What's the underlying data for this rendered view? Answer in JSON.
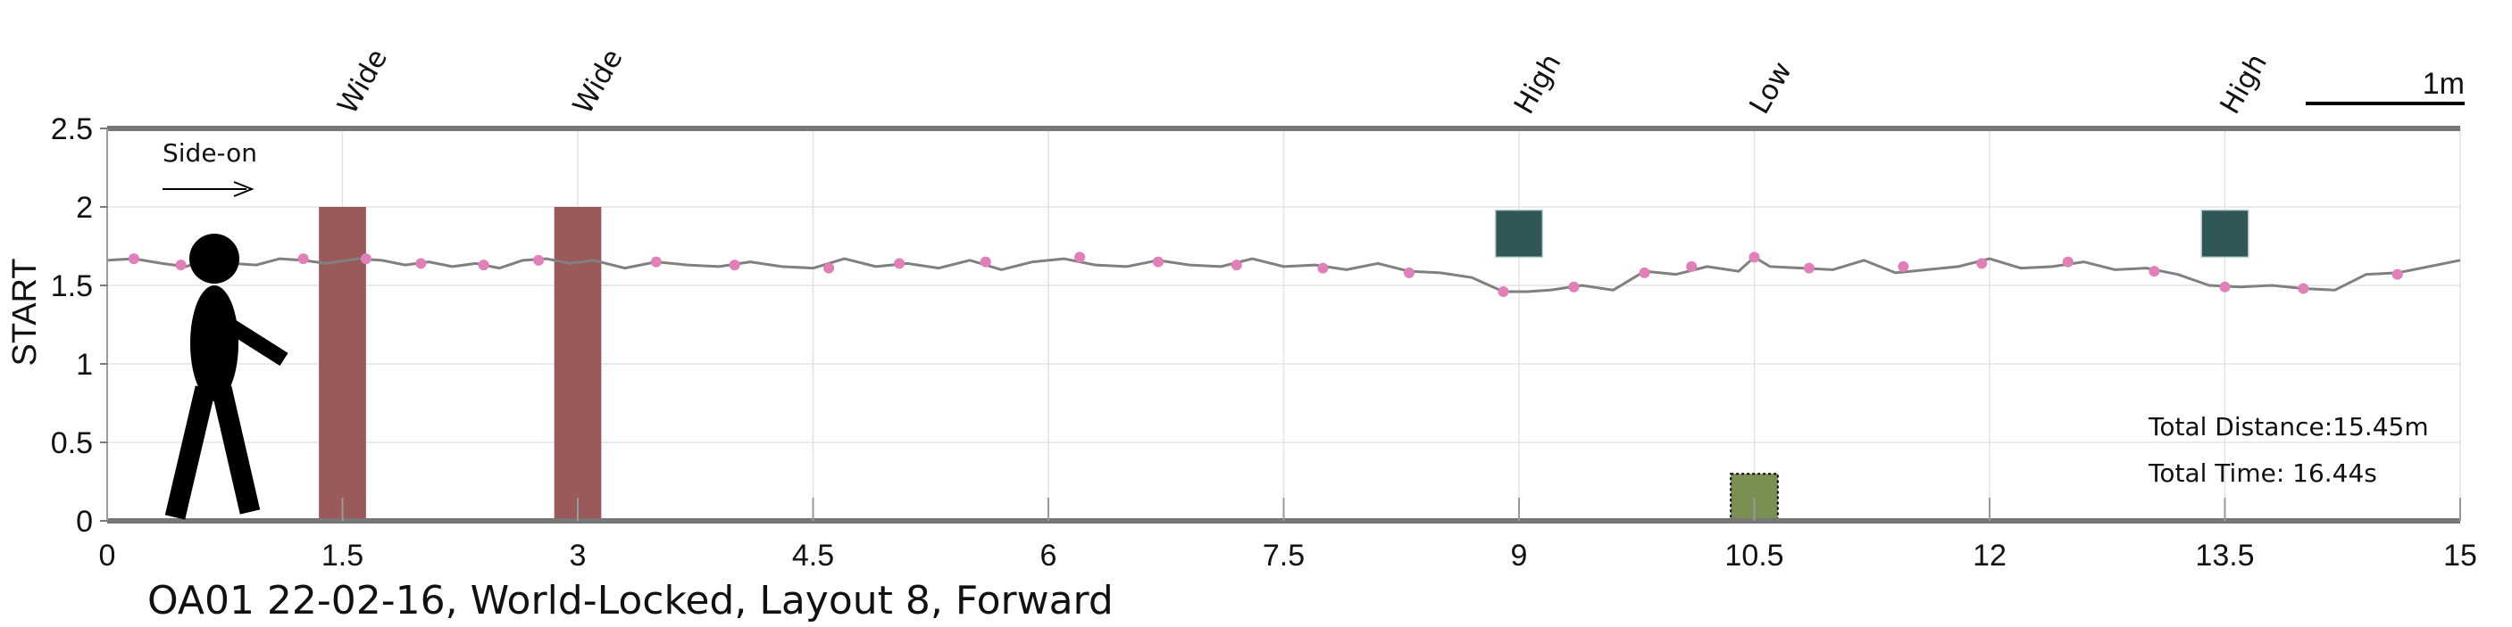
{
  "chart_data": {
    "type": "line",
    "title": "OA01 22-02-16, World-Locked, Layout 8, Forward",
    "xlabel": "",
    "ylabel": "START",
    "xlim": [
      0,
      15
    ],
    "ylim": [
      0,
      2.5
    ],
    "xticks": [
      0,
      1.5,
      3,
      4.5,
      6,
      7.5,
      9,
      10.5,
      12,
      13.5,
      15
    ],
    "xtick_labels": [
      "0",
      "1.5",
      "3",
      "4.5",
      "6",
      "7.5",
      "9",
      "10.5",
      "12",
      "13.5",
      "15"
    ],
    "yticks": [
      0,
      0.5,
      1,
      1.5,
      2,
      2.5
    ],
    "ytick_labels": [
      "0",
      "0.5",
      "1",
      "1.5",
      "2",
      "2.5"
    ],
    "grid": true,
    "scale_bar_label": "1m",
    "scale_bar_length": 1,
    "direction_label": "Side-on",
    "walker_icon": "walking-person-icon",
    "colors": {
      "path": "#808080",
      "marker": "#e07fb8",
      "wide_obstacle": "#9b5a5a",
      "high_obstacle": "#2f5757",
      "low_obstacle": "#7a8f52",
      "axis": "#777777"
    },
    "series": [
      {
        "x": [
          0.0,
          0.17,
          0.35,
          0.5,
          0.65,
          0.8,
          0.95,
          1.1,
          1.25,
          1.4,
          1.6,
          1.75,
          1.9,
          2.05,
          2.2,
          2.35,
          2.5,
          2.65,
          2.8,
          2.95,
          3.1,
          3.3,
          3.5,
          3.7,
          3.9,
          4.1,
          4.3,
          4.5,
          4.7,
          4.9,
          5.1,
          5.3,
          5.5,
          5.7,
          5.9,
          6.1,
          6.3,
          6.5,
          6.7,
          6.9,
          7.1,
          7.3,
          7.5,
          7.7,
          7.9,
          8.1,
          8.3,
          8.5,
          8.7,
          8.9,
          9.05,
          9.2,
          9.4,
          9.6,
          9.8,
          10.0,
          10.2,
          10.4,
          10.5,
          10.6,
          10.8,
          11.0,
          11.2,
          11.4,
          11.6,
          11.8,
          12.0,
          12.2,
          12.4,
          12.6,
          12.8,
          13.0,
          13.2,
          13.4,
          13.6,
          13.8,
          14.0,
          14.2,
          14.4,
          14.6,
          14.8,
          15.0
        ],
        "y": [
          1.66,
          1.67,
          1.64,
          1.62,
          1.66,
          1.64,
          1.63,
          1.67,
          1.66,
          1.64,
          1.67,
          1.66,
          1.63,
          1.65,
          1.62,
          1.64,
          1.61,
          1.66,
          1.67,
          1.64,
          1.66,
          1.61,
          1.65,
          1.63,
          1.62,
          1.65,
          1.62,
          1.61,
          1.67,
          1.62,
          1.64,
          1.61,
          1.66,
          1.6,
          1.65,
          1.67,
          1.63,
          1.62,
          1.66,
          1.63,
          1.62,
          1.67,
          1.62,
          1.63,
          1.6,
          1.64,
          1.59,
          1.58,
          1.55,
          1.46,
          1.46,
          1.47,
          1.5,
          1.47,
          1.59,
          1.57,
          1.62,
          1.59,
          1.68,
          1.62,
          1.61,
          1.6,
          1.66,
          1.58,
          1.6,
          1.62,
          1.67,
          1.61,
          1.62,
          1.65,
          1.6,
          1.61,
          1.57,
          1.5,
          1.49,
          1.5,
          1.48,
          1.47,
          1.57,
          1.58,
          1.62,
          1.66
        ]
      }
    ],
    "markers": {
      "x": [
        0.17,
        0.47,
        1.25,
        1.65,
        2.0,
        2.4,
        2.75,
        3.5,
        4.0,
        4.6,
        5.05,
        5.6,
        6.2,
        6.7,
        7.2,
        7.75,
        8.3,
        8.9,
        9.35,
        9.8,
        10.1,
        10.5,
        10.85,
        11.45,
        11.95,
        12.5,
        13.05,
        13.5,
        14.0,
        14.6
      ],
      "y": [
        1.67,
        1.63,
        1.67,
        1.67,
        1.64,
        1.63,
        1.66,
        1.65,
        1.63,
        1.61,
        1.64,
        1.65,
        1.68,
        1.65,
        1.63,
        1.61,
        1.58,
        1.46,
        1.49,
        1.58,
        1.62,
        1.68,
        1.61,
        1.62,
        1.64,
        1.65,
        1.59,
        1.49,
        1.48,
        1.57
      ]
    },
    "obstacles": [
      {
        "label": "Wide",
        "type": "wide",
        "x": 1.5,
        "width": 0.3,
        "y0": 0,
        "y1": 2.0
      },
      {
        "label": "Wide",
        "type": "wide",
        "x": 3.0,
        "width": 0.3,
        "y0": 0,
        "y1": 2.0
      },
      {
        "label": "High",
        "type": "high",
        "x": 9.0,
        "width": 0.3,
        "y0": 1.68,
        "y1": 1.98
      },
      {
        "label": "Low",
        "type": "low",
        "x": 10.5,
        "width": 0.3,
        "y0": 0,
        "y1": 0.3
      },
      {
        "label": "High",
        "type": "high",
        "x": 13.5,
        "width": 0.3,
        "y0": 1.68,
        "y1": 1.98
      }
    ],
    "annotations": {
      "total_distance": "Total Distance:15.45m",
      "total_time": "Total Time: 16.44s"
    }
  }
}
